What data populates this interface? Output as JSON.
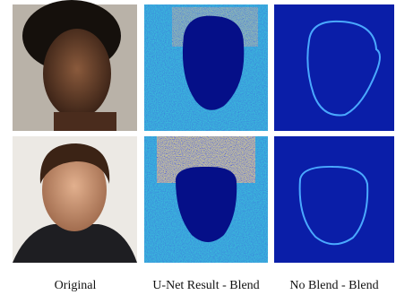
{
  "figure": {
    "captions": [
      "Original",
      "U-Net Result - Blend",
      "No Blend - Blend"
    ]
  }
}
